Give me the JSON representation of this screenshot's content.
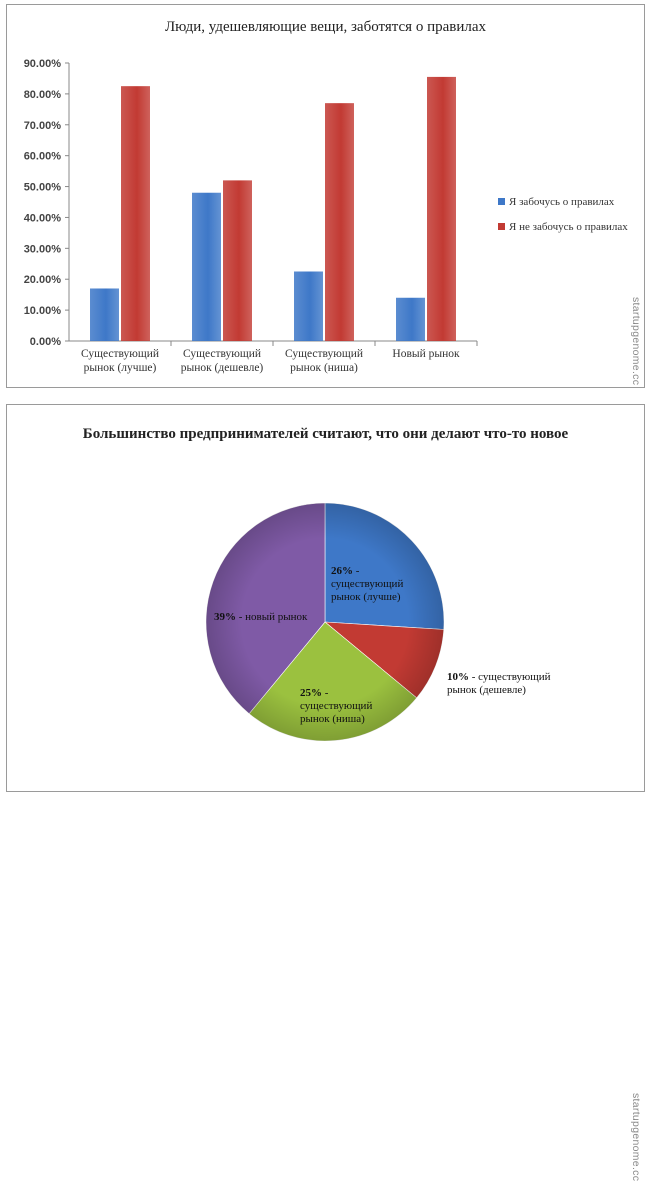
{
  "chart_data": [
    {
      "type": "bar",
      "title": "Люди, удешевляющие вещи, заботятся о правилах",
      "categories": [
        [
          "Существующий",
          "рынок (лучше)"
        ],
        [
          "Существующий",
          "рынок (дешевле)"
        ],
        [
          "Существующий",
          "рынок (ниша)"
        ],
        [
          "Новый рынок"
        ]
      ],
      "series": [
        {
          "name": "Я забочусь о правилах",
          "color": "#3e78c8",
          "values": [
            17,
            48,
            22.5,
            14
          ]
        },
        {
          "name": "Я не забочусь о правилах",
          "color": "#c23a33",
          "values": [
            82.5,
            52,
            77,
            85.5
          ]
        }
      ],
      "ylim": [
        0,
        90
      ],
      "yticks": [
        "0.00%",
        "10.00%",
        "20.00%",
        "30.00%",
        "40.00%",
        "50.00%",
        "60.00%",
        "70.00%",
        "80.00%",
        "90.00%"
      ],
      "grid": false,
      "legend": "right",
      "watermark": "startupgenome.cc"
    },
    {
      "type": "pie",
      "title": "Большинство предпринимателей считают, что они делают что-то новое",
      "slices": [
        {
          "value": 26,
          "pct": "26%",
          "text": [
            " -",
            "существующий",
            "рынок (лучше)"
          ],
          "color": "#3e78c8"
        },
        {
          "value": 10,
          "pct": "10%",
          "text": [
            " - существующий",
            "рынок (дешевле)"
          ],
          "color": "#c23a33"
        },
        {
          "value": 25,
          "pct": "25%",
          "text": [
            " -",
            "существующий",
            "рынок (ниша)"
          ],
          "color": "#9bc13f"
        },
        {
          "value": 39,
          "pct": "39%",
          "text": [
            " - новый рынок"
          ],
          "color": "#7f5aa6"
        }
      ],
      "watermark": "startupgenome.cc"
    }
  ]
}
